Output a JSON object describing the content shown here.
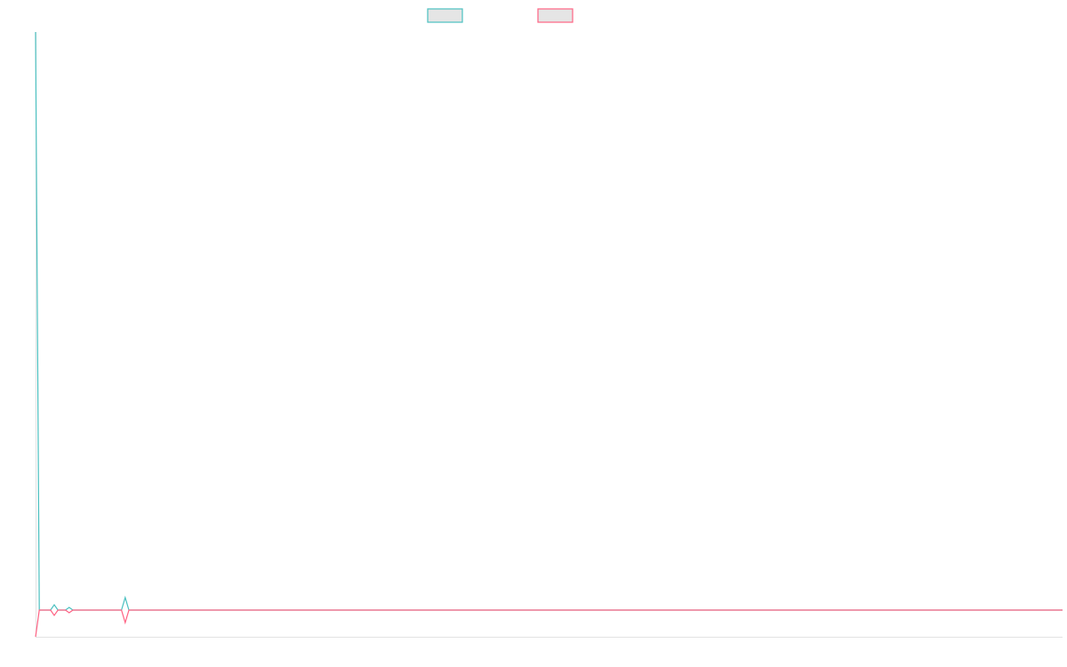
{
  "chart_data": {
    "type": "line",
    "title": "",
    "xlabel": "",
    "ylabel": "",
    "xlim": [
      0,
      275
    ],
    "ylim": [
      -1,
      21.67
    ],
    "grid": false,
    "legend_position": "top",
    "series": [
      {
        "color": "#4bc0c0",
        "points": [
          [
            0,
            21.67
          ],
          [
            1,
            0
          ],
          [
            4,
            0
          ],
          [
            5,
            0.2
          ],
          [
            6,
            0
          ],
          [
            8,
            0
          ],
          [
            9,
            0.1
          ],
          [
            10,
            0
          ],
          [
            23,
            0
          ],
          [
            24,
            0.47
          ],
          [
            25,
            0
          ],
          [
            275,
            0
          ]
        ]
      },
      {
        "color": "#ff6384",
        "points": [
          [
            0,
            -1
          ],
          [
            1,
            0
          ],
          [
            4,
            0
          ],
          [
            5,
            -0.2
          ],
          [
            6,
            0
          ],
          [
            8,
            0
          ],
          [
            9,
            -0.1
          ],
          [
            10,
            0
          ],
          [
            23,
            0
          ],
          [
            24,
            -0.47
          ],
          [
            25,
            0
          ],
          [
            275,
            0
          ]
        ]
      }
    ]
  },
  "legend": {
    "fill": "#e5e5e5"
  }
}
